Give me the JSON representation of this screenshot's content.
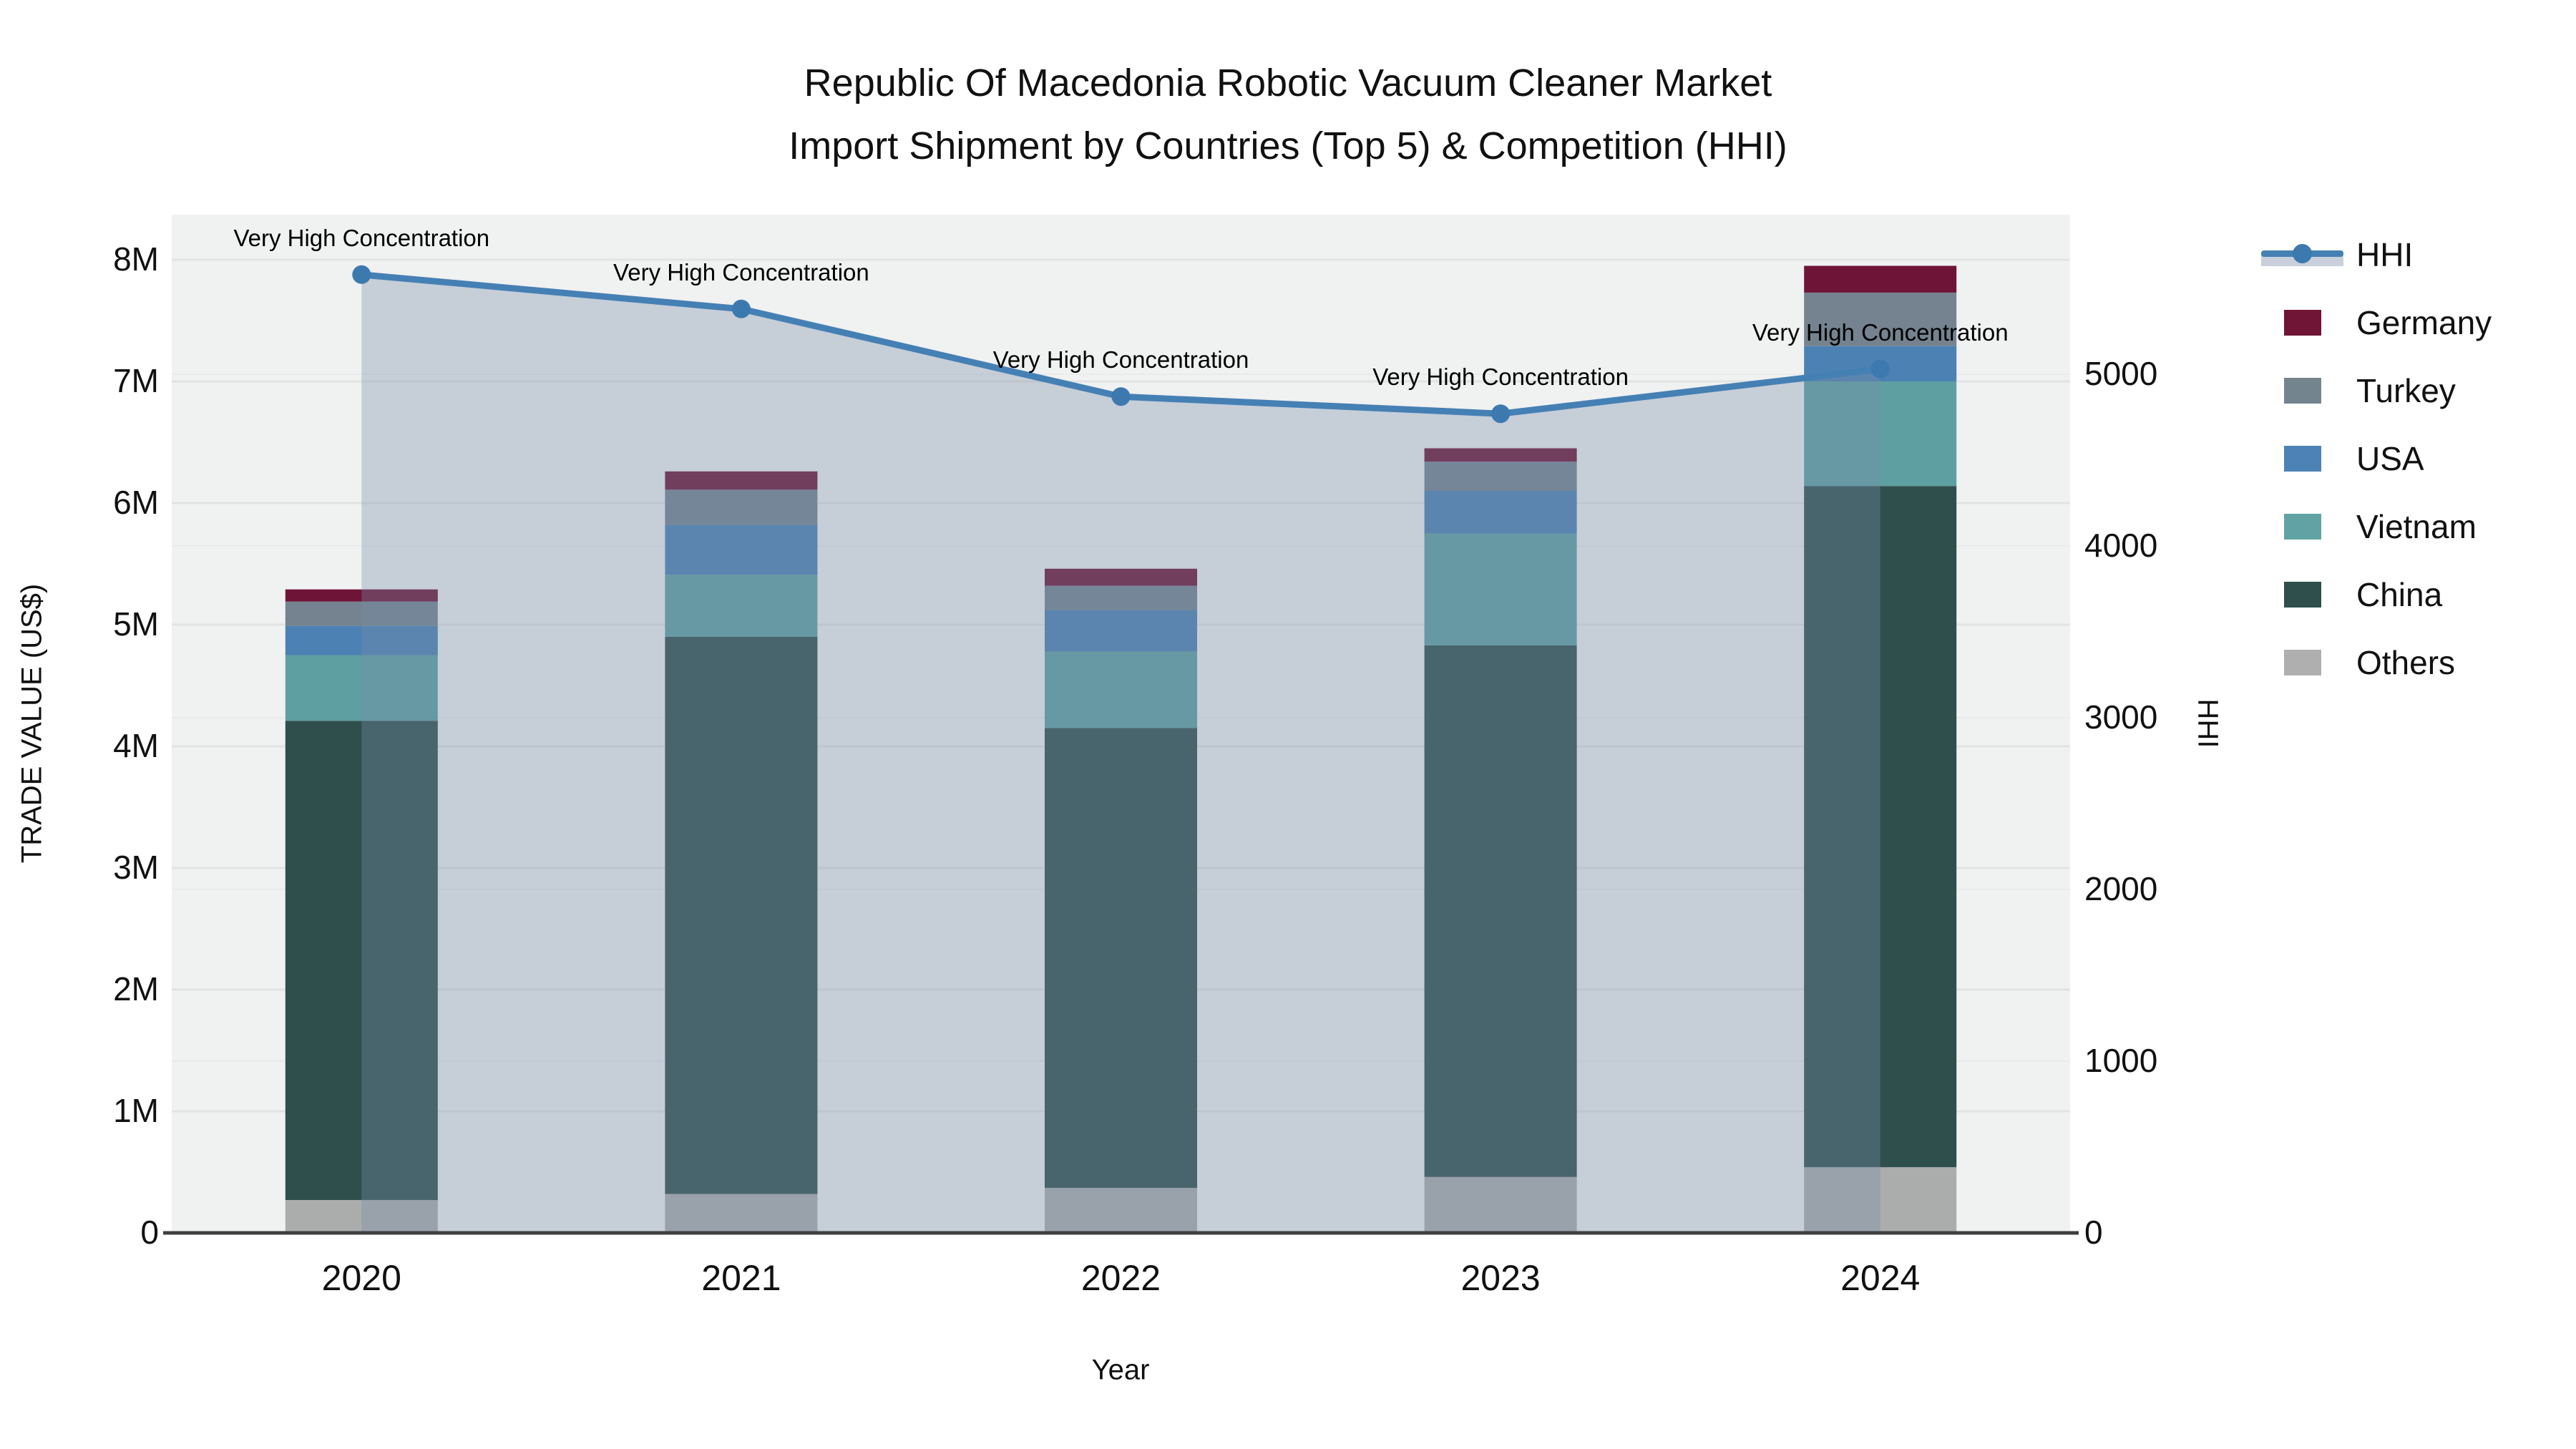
{
  "title": {
    "line1": "Republic Of Macedonia Robotic Vacuum Cleaner Market",
    "line2": "Import Shipment by Countries (Top 5) & Competition (HHI)"
  },
  "axes": {
    "x_title": "Year",
    "y_left_title": "TRADE VALUE (US$)",
    "y_right_title": "HHI",
    "y_left_tick_labels": [
      "0",
      "1M",
      "2M",
      "3M",
      "4M",
      "5M",
      "6M",
      "7M",
      "8M"
    ],
    "y_left_tick_values_musd": [
      0,
      1,
      2,
      3,
      4,
      5,
      6,
      7,
      8
    ],
    "y_right_tick_labels": [
      "0",
      "1000",
      "2000",
      "3000",
      "4000",
      "5000"
    ],
    "y_right_tick_values": [
      0,
      1000,
      2000,
      3000,
      4000,
      5000
    ]
  },
  "legend": [
    {
      "key": "hhi",
      "label": "HHI",
      "type": "line",
      "color": "#4580b4"
    },
    {
      "key": "germany",
      "label": "Germany",
      "type": "box",
      "color": "#701536"
    },
    {
      "key": "turkey",
      "label": "Turkey",
      "type": "box",
      "color": "#74848f"
    },
    {
      "key": "usa",
      "label": "USA",
      "type": "box",
      "color": "#4c82b6"
    },
    {
      "key": "vietnam",
      "label": "Vietnam",
      "type": "box",
      "color": "#61a3a4"
    },
    {
      "key": "china",
      "label": "China",
      "type": "box",
      "color": "#2f4f4c"
    },
    {
      "key": "others",
      "label": "Others",
      "type": "box",
      "color": "#afafaf"
    }
  ],
  "chart_data": {
    "type": "bar+line",
    "categories": [
      "2020",
      "2021",
      "2022",
      "2023",
      "2024"
    ],
    "bar_unit": "US$ millions",
    "bar_stack_bottom_to_top": [
      {
        "name": "Others",
        "color": "#abadad",
        "values": [
          0.27,
          0.32,
          0.37,
          0.46,
          0.54
        ]
      },
      {
        "name": "China",
        "color": "#2f4f4d",
        "values": [
          3.94,
          4.58,
          3.78,
          4.37,
          5.6
        ]
      },
      {
        "name": "Vietnam",
        "color": "#5ea0a2",
        "values": [
          0.54,
          0.51,
          0.63,
          0.92,
          0.86
        ]
      },
      {
        "name": "USA",
        "color": "#4c81b3",
        "values": [
          0.24,
          0.41,
          0.34,
          0.35,
          0.29
        ]
      },
      {
        "name": "Turkey",
        "color": "#74838f",
        "values": [
          0.2,
          0.29,
          0.2,
          0.24,
          0.44
        ]
      },
      {
        "name": "Germany",
        "color": "#6e1437",
        "values": [
          0.1,
          0.15,
          0.14,
          0.11,
          0.22
        ]
      }
    ],
    "bar_totals_musd": [
      5.29,
      6.26,
      5.46,
      6.45,
      7.95
    ],
    "line_series": {
      "name": "HHI",
      "color": "#4580b4",
      "marker_color": "#3c79af",
      "area_fill": "rgba(120,140,170,0.35)",
      "values": [
        5580,
        5380,
        4870,
        4770,
        5030
      ]
    },
    "annotations": [
      "Very High Concentration",
      "Very High Concentration",
      "Very High Concentration",
      "Very High Concentration",
      "Very High Concentration"
    ],
    "ylim_left_musd": [
      0,
      8.37
    ],
    "ylim_right_hhi": [
      0,
      5929
    ],
    "grid": true,
    "legend_position": "right"
  },
  "style": {
    "plot_bg": "#f0f1f1",
    "grid_left": "#e2e4e4",
    "grid_right": "#e9eaec",
    "axis_line": "#3f3f3f",
    "tick_color": "#111111",
    "annotation_color": "#000000"
  }
}
